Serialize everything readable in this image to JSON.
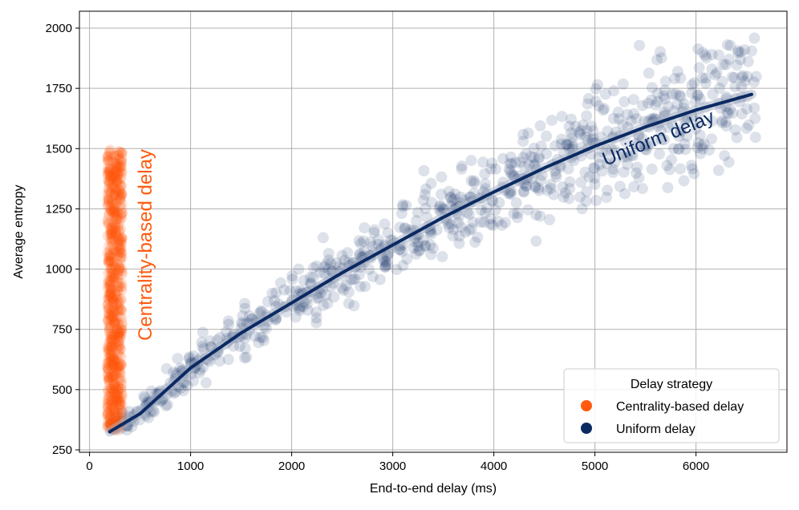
{
  "chart_data": {
    "type": "scatter",
    "title": "",
    "xlabel": "End-to-end delay (ms)",
    "ylabel": "Average entropy",
    "xlim": [
      -100,
      6900
    ],
    "ylim": [
      240,
      2070
    ],
    "xticks": [
      0,
      1000,
      2000,
      3000,
      4000,
      5000,
      6000
    ],
    "yticks": [
      250,
      500,
      750,
      1000,
      1250,
      1500,
      1750,
      2000
    ],
    "grid": true,
    "legend": {
      "title": "Delay strategy",
      "placement": "bottom-right",
      "entries": [
        "Centrality-based delay",
        "Uniform delay"
      ]
    },
    "colors": {
      "centrality": "#ff5a0e",
      "uniform": "#0b2a62",
      "uniform_fill": "#aab3c8"
    },
    "series": [
      {
        "name": "Centrality-based delay",
        "color": "#ff5a0e",
        "description_points": "dense vertical band of points at x between 170 and 330 ms, y from about 330 to 1500",
        "x_range": [
          170,
          330
        ],
        "y_range": [
          330,
          1500
        ],
        "annotation": "Centrality-based delay"
      },
      {
        "name": "Uniform delay",
        "color": "#0b2a62",
        "x_range": [
          200,
          6600
        ],
        "y_range": [
          330,
          1980
        ],
        "fit": {
          "x": [
            200,
            500,
            1000,
            1500,
            2000,
            2500,
            3000,
            3500,
            4000,
            4500,
            5000,
            5500,
            6000,
            6550
          ],
          "y": [
            325,
            400,
            590,
            735,
            860,
            985,
            1100,
            1215,
            1320,
            1420,
            1510,
            1590,
            1660,
            1725
          ]
        },
        "annotation": "Uniform delay"
      }
    ]
  }
}
